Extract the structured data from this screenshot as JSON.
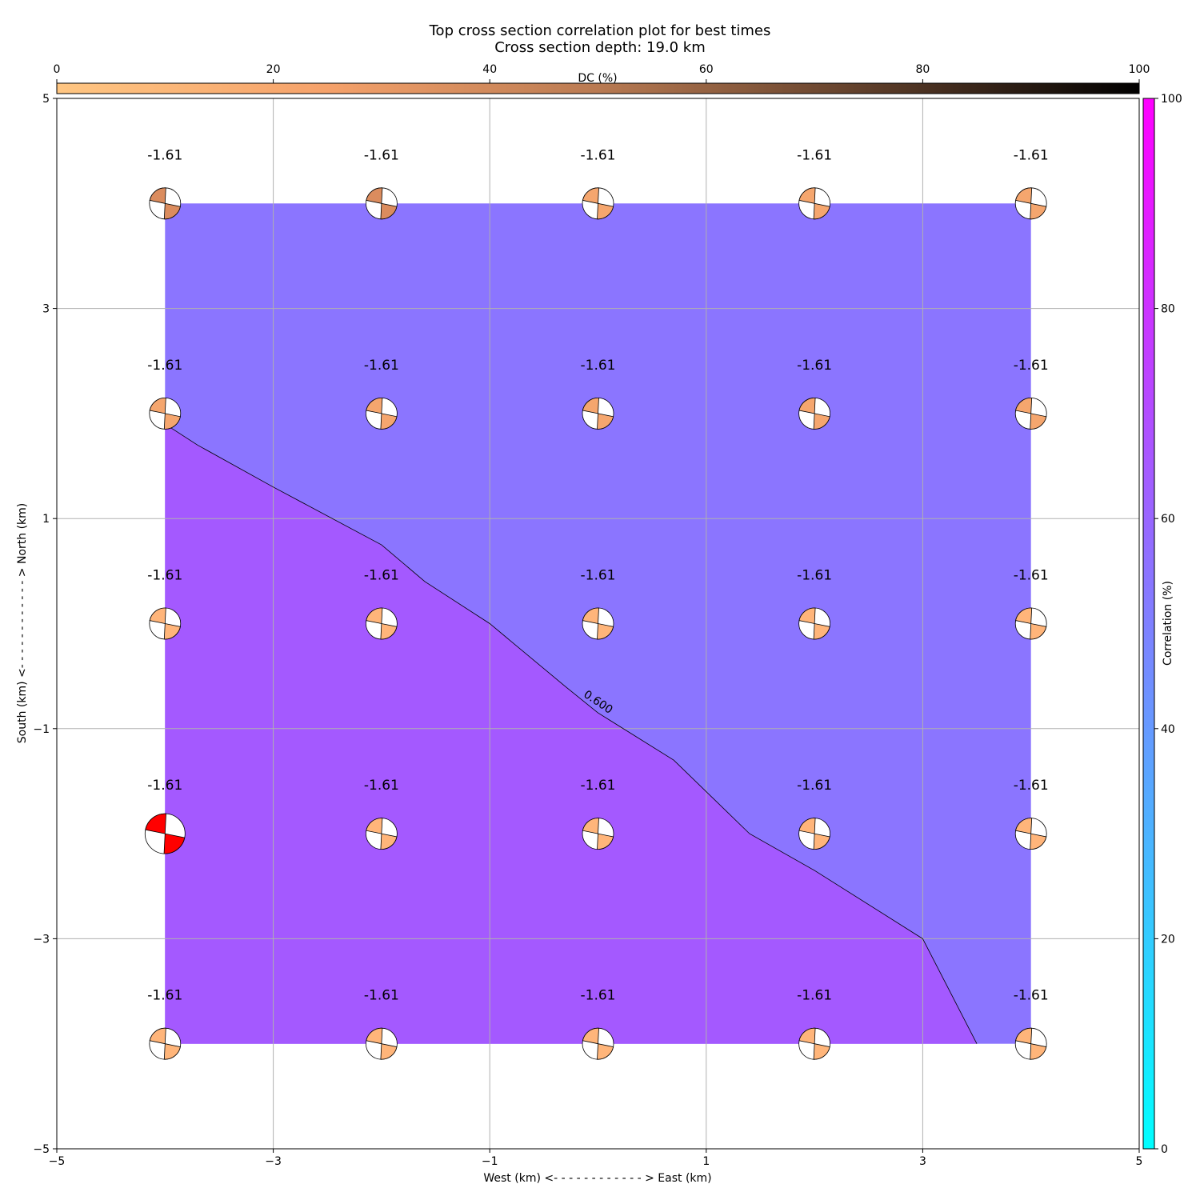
{
  "chart_data": {
    "type": "heatmap",
    "title": "Top cross section correlation plot for best times",
    "subtitle": "Cross section depth: 19.0 km",
    "xlabel": "West (km) <- - - - - - - - - - - - > East (km)",
    "ylabel": "South (km) <- - - - - - - - - - - - > North (km)",
    "xlim": [
      -5,
      5
    ],
    "ylim": [
      -5,
      5
    ],
    "xticks": [
      "−5",
      "−3",
      "−1",
      "1",
      "3",
      "5"
    ],
    "yticks": [
      "−5",
      "−3",
      "−1",
      "1",
      "3",
      "5"
    ],
    "xtick_values": [
      -5,
      -3,
      -1,
      1,
      3,
      5
    ],
    "ytick_values": [
      -5,
      -3,
      -1,
      1,
      3,
      5
    ],
    "grid": true,
    "grid_x": [
      -4,
      -2,
      0,
      2,
      4
    ],
    "grid_y": [
      4,
      2,
      0,
      -2,
      -4
    ],
    "point_label": "-1.61",
    "best_point": [
      -4,
      -2
    ],
    "colors": {
      "upper_region": "#8b75ff",
      "lower_region": "#a459ff",
      "best_beachball": "#ff0000",
      "beachball_dark": "#db8c5e",
      "beachball_mid": "#f5a66e",
      "beachball_light": "#ffb57a"
    },
    "contour": {
      "label": "0.600",
      "points": [
        [
          -4.0,
          1.9
        ],
        [
          -3.7,
          1.7
        ],
        [
          -3.0,
          1.3
        ],
        [
          -2.0,
          0.75
        ],
        [
          -1.6,
          0.4
        ],
        [
          -1.0,
          0.0
        ],
        [
          -0.3,
          -0.6
        ],
        [
          0.0,
          -0.85
        ],
        [
          0.7,
          -1.3
        ],
        [
          1.4,
          -2.0
        ],
        [
          2.0,
          -2.35
        ],
        [
          3.0,
          -3.0
        ],
        [
          3.5,
          -4.0
        ]
      ]
    },
    "dc_colorbar": {
      "label": "DC (%)",
      "ticks": [
        "0",
        "20",
        "40",
        "60",
        "80",
        "100"
      ],
      "range": [
        0,
        100
      ]
    },
    "corr_colorbar": {
      "label": "Correlation (%)",
      "ticks": [
        "0",
        "20",
        "40",
        "60",
        "80",
        "100"
      ],
      "range": [
        0,
        100
      ]
    }
  }
}
